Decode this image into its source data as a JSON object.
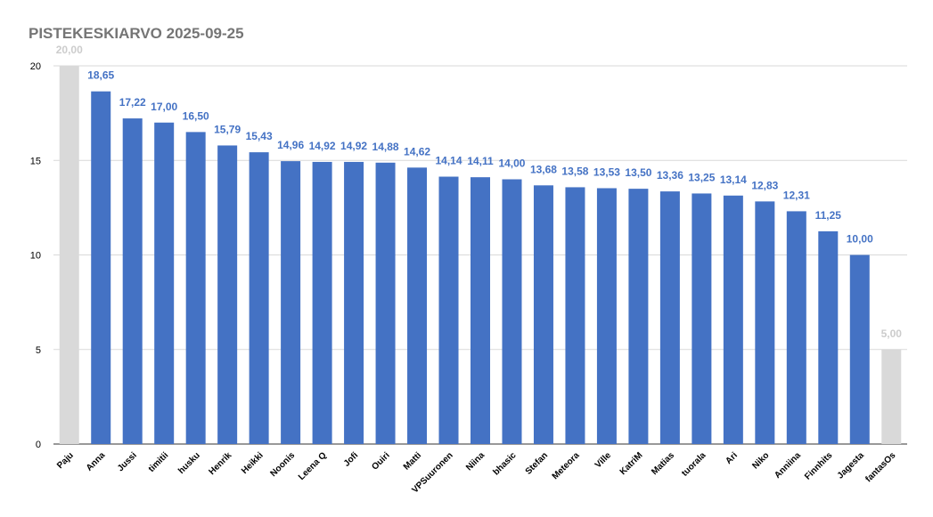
{
  "chart_data": {
    "type": "bar",
    "title": "PISTEKESKIARVO 2025-09-25",
    "xlabel": "",
    "ylabel": "",
    "ylim": [
      0,
      20
    ],
    "yticks": [
      0,
      5,
      10,
      15,
      20
    ],
    "grid": true,
    "legend": "none",
    "categories": [
      "Paju",
      "Anna",
      "Jussi",
      "timitii",
      "husku",
      "Henrik",
      "Heikki",
      "Noonis",
      "Leena Q",
      "Jofi",
      "Ouiri",
      "Matti",
      "VPSuuronen",
      "Niina",
      "bhasic",
      "Stefan",
      "Meteora",
      "Ville",
      "KatriM",
      "Matias",
      "tuorala",
      "Ari",
      "Niko",
      "Anniina",
      "Finnhits",
      "Jagesta",
      "fantasOs"
    ],
    "values": [
      20.0,
      18.65,
      17.22,
      17.0,
      16.5,
      15.79,
      15.43,
      14.96,
      14.92,
      14.92,
      14.88,
      14.62,
      14.14,
      14.11,
      14.0,
      13.68,
      13.58,
      13.53,
      13.5,
      13.36,
      13.25,
      13.14,
      12.83,
      12.31,
      11.25,
      10.0,
      5.0
    ],
    "value_labels": [
      "20,00",
      "18,65",
      "17,22",
      "17,00",
      "16,50",
      "15,79",
      "15,43",
      "14,96",
      "14,92",
      "14,92",
      "14,88",
      "14,62",
      "14,14",
      "14,11",
      "14,00",
      "13,68",
      "13,58",
      "13,53",
      "13,50",
      "13,36",
      "13,25",
      "13,14",
      "12,83",
      "12,31",
      "11,25",
      "10,00",
      "5,00"
    ],
    "highlight": [
      true,
      false,
      false,
      false,
      false,
      false,
      false,
      false,
      false,
      false,
      false,
      false,
      false,
      false,
      false,
      false,
      false,
      false,
      false,
      false,
      false,
      false,
      false,
      false,
      false,
      false,
      true
    ],
    "colors": {
      "bar": "#4472c4",
      "highlight_bar": "#d9d9d9",
      "label": "#4472c4",
      "highlight_label": "#cccccc",
      "grid": "#d9d9d9",
      "axis_text": "#000000",
      "title": "#757575"
    }
  }
}
